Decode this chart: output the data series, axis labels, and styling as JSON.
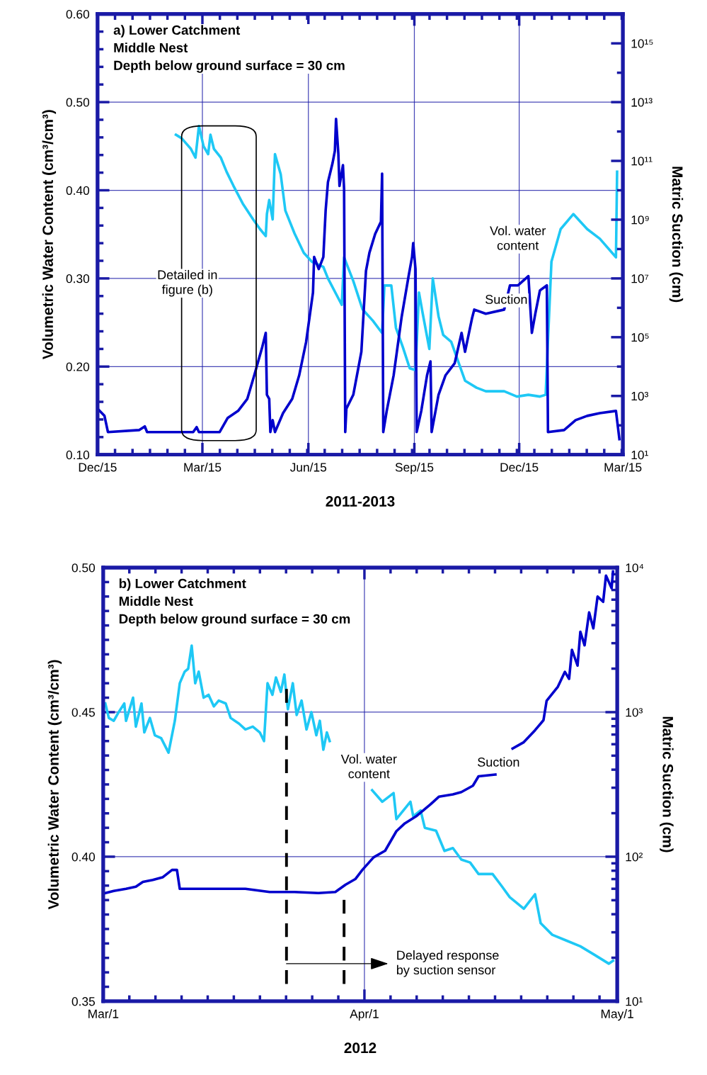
{
  "chart_data": [
    {
      "type": "line",
      "title": "a) Lower Catchment\nMiddle Nest\nDepth below ground surface = 30 cm",
      "xlabel": "2011-2013",
      "ylabel": "Volumetric Water Content (cm³/cm³)",
      "y2label": "Matric Suction (cm)",
      "xlim": [
        "2011-12-15",
        "2013-03-15"
      ],
      "xticks": [
        {
          "value": "2011-12-15",
          "label": "Dec/15"
        },
        {
          "value": "2012-03-15",
          "label": "Mar/15"
        },
        {
          "value": "2012-06-15",
          "label": "Jun/15"
        },
        {
          "value": "2012-09-15",
          "label": "Sep/15"
        },
        {
          "value": "2012-12-15",
          "label": "Dec/15"
        },
        {
          "value": "2013-03-15",
          "label": "Mar/15"
        }
      ],
      "ylim": [
        0.1,
        0.6
      ],
      "yticks": [
        {
          "value": 0.1,
          "label": "0.10"
        },
        {
          "value": 0.2,
          "label": "0.20"
        },
        {
          "value": 0.3,
          "label": "0.30"
        },
        {
          "value": 0.4,
          "label": "0.40"
        },
        {
          "value": 0.5,
          "label": "0.50"
        },
        {
          "value": 0.6,
          "label": "0.60"
        }
      ],
      "y2lim": [
        10,
        1e+16
      ],
      "y2ticks": [
        {
          "value": 10,
          "label": "10¹"
        },
        {
          "value": 1000,
          "label": "10³"
        },
        {
          "value": 100000.0,
          "label": "10⁵"
        },
        {
          "value": 10000000.0,
          "label": "10⁷"
        },
        {
          "value": 1000000000.0,
          "label": "10⁹"
        },
        {
          "value": 100000000000.0,
          "label": "10¹¹"
        },
        {
          "value": 10000000000000.0,
          "label": "10¹³"
        },
        {
          "value": 1000000000000000.0,
          "label": "10¹⁵"
        }
      ],
      "log": "y2",
      "grid": true,
      "series": [
        {
          "color": "#1ec8f5",
          "x": [
            "2012-02-21",
            "2012-02-26",
            "2012-03-01",
            "2012-03-05",
            "2012-03-09",
            "2012-03-12",
            "2012-03-16",
            "2012-03-20",
            "2012-03-22",
            "2012-03-25",
            "2012-03-31",
            "2012-04-05",
            "2012-04-11",
            "2012-04-19",
            "2012-04-28",
            "2012-05-04",
            "2012-05-09",
            "2012-05-10",
            "2012-05-12",
            "2012-05-15",
            "2012-05-17",
            "2012-05-22",
            "2012-05-26",
            "2012-06-03",
            "2012-06-11",
            "2012-06-18",
            "2012-06-28",
            "2012-07-02",
            "2012-07-14",
            "2012-07-16",
            "2012-07-24",
            "2012-08-01",
            "2012-08-10",
            "2012-08-18",
            "2012-08-20",
            "2012-08-26",
            "2012-08-30",
            "2012-09-05",
            "2012-09-11",
            "2012-09-16",
            "2012-09-19",
            "2012-09-22",
            "2012-09-28",
            "2012-10-01",
            "2012-10-06",
            "2012-10-10",
            "2012-10-17",
            "2012-10-23",
            "2012-10-29",
            "2012-11-08",
            "2012-11-16",
            "2012-12-02",
            "2012-12-13",
            "2012-12-23",
            "2013-01-02",
            "2013-01-07",
            "2013-01-09",
            "2013-01-12",
            "2013-01-20",
            "2013-01-31",
            "2013-02-12",
            "2013-02-23",
            "2013-03-09",
            "2013-03-10"
          ],
          "values": [
            0.463,
            0.459,
            0.453,
            0.447,
            0.437,
            0.473,
            0.45,
            0.441,
            0.463,
            0.447,
            0.437,
            0.421,
            0.405,
            0.385,
            0.367,
            0.356,
            0.348,
            0.373,
            0.389,
            0.367,
            0.441,
            0.418,
            0.377,
            0.351,
            0.329,
            0.319,
            0.313,
            0.3,
            0.27,
            0.324,
            0.297,
            0.265,
            0.252,
            0.238,
            0.292,
            0.292,
            0.244,
            0.222,
            0.198,
            0.196,
            0.284,
            0.262,
            0.22,
            0.3,
            0.257,
            0.236,
            0.228,
            0.206,
            0.184,
            0.176,
            0.172,
            0.172,
            0.166,
            0.168,
            0.166,
            0.168,
            0.23,
            0.319,
            0.356,
            0.373,
            0.356,
            0.345,
            0.324,
            0.421
          ]
        },
        {
          "color": "#0000cc",
          "axis": "y2",
          "x": [
            "2011-12-15",
            "2011-12-21",
            "2011-12-24",
            "2012-01-20",
            "2012-01-25",
            "2012-01-27",
            "2012-03-07",
            "2012-03-10",
            "2012-03-12",
            "2012-03-30",
            "2012-04-06",
            "2012-04-15",
            "2012-04-23",
            "2012-04-29",
            "2012-05-06",
            "2012-05-09",
            "2012-05-10",
            "2012-05-12",
            "2012-05-13",
            "2012-05-15",
            "2012-05-17",
            "2012-05-24",
            "2012-06-01",
            "2012-06-07",
            "2012-06-13",
            "2012-06-19",
            "2012-06-20",
            "2012-06-24",
            "2012-06-28",
            "2012-06-30",
            "2012-07-02",
            "2012-07-06",
            "2012-07-08",
            "2012-07-09",
            "2012-07-11",
            "2012-07-12",
            "2012-07-15",
            "2012-07-16",
            "2012-07-17",
            "2012-07-18",
            "2012-07-24",
            "2012-07-31",
            "2012-08-04",
            "2012-08-07",
            "2012-08-12",
            "2012-08-17",
            "2012-08-18",
            "2012-08-19",
            "2012-08-22",
            "2012-08-28",
            "2012-09-04",
            "2012-09-10",
            "2012-09-13",
            "2012-09-14",
            "2012-09-16",
            "2012-09-17",
            "2012-09-21",
            "2012-09-26",
            "2012-09-29",
            "2012-09-30",
            "2012-10-06",
            "2012-10-12",
            "2012-10-20",
            "2012-10-26",
            "2012-10-29",
            "2012-11-04",
            "2012-11-06",
            "2012-11-16",
            "2012-12-02",
            "2012-12-07",
            "2012-12-14",
            "2012-12-23",
            "2012-12-26",
            "2012-12-29",
            "2013-01-02",
            "2013-01-08",
            "2013-01-09",
            "2013-01-23",
            "2013-02-02",
            "2013-02-12",
            "2013-02-23",
            "2013-03-09",
            "2013-03-12"
          ],
          "values": [
            370,
            210,
            59,
            69,
            92,
            59,
            59,
            87,
            59,
            59,
            180,
            310,
            800,
            5000,
            47000,
            140000.0,
            1100,
            800,
            59,
            150,
            59,
            260,
            800,
            5000,
            68000,
            3300000.0,
            54000000.0,
            21000000.0,
            54000000.0,
            2100000000.0,
            19000000000.0,
            85000000000.0,
            220000000000.0,
            2700000000000.0,
            180000000000.0,
            14000000000.0,
            72000000000.0,
            11000000000.0,
            59,
            370,
            1100,
            32000,
            18000000.0,
            75000000.0,
            330000000.0,
            850000000.0,
            37000000000.0,
            59,
            310,
            5000,
            500000.0,
            12000000.0,
            54000000.0,
            160000000.0,
            21000000.0,
            59,
            310,
            5000,
            15000,
            59,
            1100,
            5000,
            13000,
            140000.0,
            32000,
            430000.0,
            870000.0,
            630000.0,
            870000.0,
            5800000.0,
            5800000.0,
            12000000.0,
            140000.0,
            630000.0,
            3900000.0,
            5800000.0,
            59,
            69,
            150,
            210,
            260,
            310,
            34
          ]
        }
      ],
      "annotations": [
        "Detailed in\nfigure (b)",
        "Vol. water\ncontent",
        "Suction"
      ]
    },
    {
      "type": "line",
      "title": "b) Lower Catchment\nMiddle Nest\nDepth below ground surface = 30 cm",
      "xlabel": "2012",
      "ylabel": "Volumetric Water Content (cm³/cm³)",
      "y2label": "Matric Suction (cm)",
      "xlim": [
        "2012-03-01",
        "2012-05-01"
      ],
      "xticks": [
        {
          "value": "2012-03-01",
          "label": "Mar/1"
        },
        {
          "value": "2012-04-01",
          "label": "Apr/1"
        },
        {
          "value": "2012-05-01",
          "label": "May/1"
        }
      ],
      "ylim": [
        0.35,
        0.5
      ],
      "yticks": [
        {
          "value": 0.35,
          "label": "0.35"
        },
        {
          "value": 0.4,
          "label": "0.40"
        },
        {
          "value": 0.45,
          "label": "0.45"
        },
        {
          "value": 0.5,
          "label": "0.50"
        }
      ],
      "y2lim": [
        10,
        10000
      ],
      "y2ticks": [
        {
          "value": 10,
          "label": "10¹"
        },
        {
          "value": 100,
          "label": "10²"
        },
        {
          "value": 1000,
          "label": "10³"
        },
        {
          "value": 10000,
          "label": "10⁴"
        }
      ],
      "log": "y2",
      "grid": true,
      "series": [
        {
          "color": "#1ec8f5",
          "x": [
            "2012-03-01T06:00",
            "2012-03-01T16:00",
            "2012-03-02T06:00",
            "2012-03-02T20:00",
            "2012-03-03T12:00",
            "2012-03-03T17:00",
            "2012-03-04T13:00",
            "2012-03-04T21:00",
            "2012-03-05T13:00",
            "2012-03-05T21:00",
            "2012-03-06T13:00",
            "2012-03-07T03:00",
            "2012-03-07T21:00",
            "2012-03-08T18:00",
            "2012-03-09T12:00",
            "2012-03-10T02:00",
            "2012-03-10T16:00",
            "2012-03-11T02:00",
            "2012-03-11T12:00",
            "2012-03-11T22:00",
            "2012-03-12T08:00",
            "2012-03-12T22:00",
            "2012-03-13T12:00",
            "2012-03-14T03:00",
            "2012-03-14T17:00",
            "2012-03-15T13:00",
            "2012-03-16T03:00",
            "2012-03-17T03:00",
            "2012-03-17T21:00",
            "2012-03-18T18:00",
            "2012-03-19T14:00",
            "2012-03-20T02:00",
            "2012-03-20T12:00",
            "2012-03-21T02:00",
            "2012-03-21T12:00",
            "2012-03-22T02:00",
            "2012-03-22T12:00",
            "2012-03-22T22:00",
            "2012-03-23T12:00",
            "2012-03-23T23:00",
            "2012-03-24T13:00",
            "2012-03-25T03:00",
            "2012-03-25T17:00",
            "2012-03-26T07:00",
            "2012-03-26T17:00",
            "2012-03-27T03:00",
            "2012-03-27T13:00",
            "2012-03-27T21:00",
            "2012-03-29T12:00",
            "2012-04-01T22:00",
            "2012-04-03T03:00",
            "2012-04-04T11:00",
            "2012-04-04T19:00",
            "2012-04-06T11:00",
            "2012-04-06T19:00",
            "2012-04-07T16:00",
            "2012-04-08T04:00",
            "2012-04-09T12:00",
            "2012-04-10T12:00",
            "2012-04-11T12:00",
            "2012-04-12T12:00",
            "2012-04-13T13:00",
            "2012-04-14T13:00",
            "2012-04-16T05:00",
            "2012-04-17T06:00",
            "2012-04-18T06:00",
            "2012-04-19T22:00",
            "2012-04-21T06:00",
            "2012-04-21T22:00",
            "2012-04-23T07:00",
            "2012-04-24T23:00",
            "2012-04-26T15:00",
            "2012-04-28T08:00",
            "2012-04-30T00:00",
            "2012-04-30T12:00"
          ],
          "values": [
            0.453,
            0.448,
            0.447,
            0.45,
            0.453,
            0.447,
            0.455,
            0.445,
            0.453,
            0.443,
            0.448,
            0.442,
            0.441,
            0.436,
            0.447,
            0.46,
            0.464,
            0.465,
            0.473,
            0.46,
            0.464,
            0.455,
            0.456,
            0.452,
            0.454,
            0.453,
            0.448,
            0.446,
            0.444,
            0.445,
            0.443,
            0.44,
            0.46,
            0.456,
            0.462,
            0.457,
            0.463,
            0.451,
            0.46,
            0.449,
            0.454,
            0.444,
            0.45,
            0.442,
            0.447,
            0.437,
            0.443,
            0.44,
            null,
            0.423,
            0.419,
            0.422,
            0.413,
            0.419,
            0.414,
            0.416,
            0.41,
            0.409,
            0.402,
            0.403,
            0.399,
            0.398,
            0.394,
            0.394,
            0.39,
            0.386,
            0.382,
            0.387,
            0.377,
            0.373,
            0.371,
            0.369,
            0.366,
            0.363,
            0.364
          ]
        },
        {
          "color": "#0000cc",
          "axis": "y2",
          "x": [
            "2012-03-01T06:00",
            "2012-03-02T06:00",
            "2012-03-03T17:00",
            "2012-03-04T21:00",
            "2012-03-05T17:00",
            "2012-03-06T21:00",
            "2012-03-08T01:00",
            "2012-03-09T04:00",
            "2012-03-09T18:00",
            "2012-03-10T02:00",
            "2012-03-12T02:00",
            "2012-03-14T23:00",
            "2012-03-17T21:00",
            "2012-03-20T18:00",
            "2012-03-23T17:00",
            "2012-03-26T13:00",
            "2012-03-28T13:00",
            "2012-03-29T18:00",
            "2012-03-30T22:00",
            "2012-03-31T18:00",
            "2012-04-02T02:00",
            "2012-04-03T11:00",
            "2012-04-04T19:00",
            "2012-04-05T19:00",
            "2012-04-07T03:00",
            "2012-04-08T20:00",
            "2012-04-09T20:00",
            "2012-04-11T12:00",
            "2012-04-12T12:00",
            "2012-04-13T21:00",
            "2012-04-14T13:00",
            "2012-04-16T13:00",
            "2012-04-17T12:00",
            "2012-04-18T14:00",
            "2012-04-19T22:00",
            "2012-04-21T06:00",
            "2012-04-22T06:00",
            "2012-04-22T15:00",
            "2012-04-23T23:00",
            "2012-04-24T19:00",
            "2012-04-25T07:00",
            "2012-04-25T15:00",
            "2012-04-26T07:00",
            "2012-04-26T15:00",
            "2012-04-27T03:00",
            "2012-04-27T16:00",
            "2012-04-28T04:00",
            "2012-04-28T16:00",
            "2012-04-29T08:00",
            "2012-04-29T16:00",
            "2012-04-30T08:00",
            "2012-04-30T12:00"
          ],
          "values": [
            56,
            58,
            60,
            62,
            67,
            69,
            72,
            81,
            81,
            60,
            60,
            60,
            60,
            57,
            57,
            56,
            57,
            64,
            70,
            81,
            99,
            110,
            150,
            170,
            190,
            230,
            260,
            270,
            280,
            310,
            360,
            370,
            null,
            560,
            620,
            750,
            880,
            1200,
            1500,
            1900,
            1700,
            2700,
            2100,
            3600,
            2900,
            4900,
            3800,
            6300,
            5800,
            8800,
            7200,
            9400
          ]
        }
      ],
      "annotations": [
        "Vol. water\ncontent",
        "Suction",
        {
          "text": "Delayed response\nby suction sensor",
          "x": "2012-03-22T18:00",
          "y": 0.363
        }
      ],
      "ref_lines": [
        {
          "axis": "x",
          "value": "2012-03-22T18:00",
          "color": "#000000",
          "line_style": "dashed"
        },
        {
          "axis": "x",
          "value": "2012-03-29T14:00",
          "color": "#000000",
          "line_style": "dashed"
        }
      ]
    }
  ]
}
